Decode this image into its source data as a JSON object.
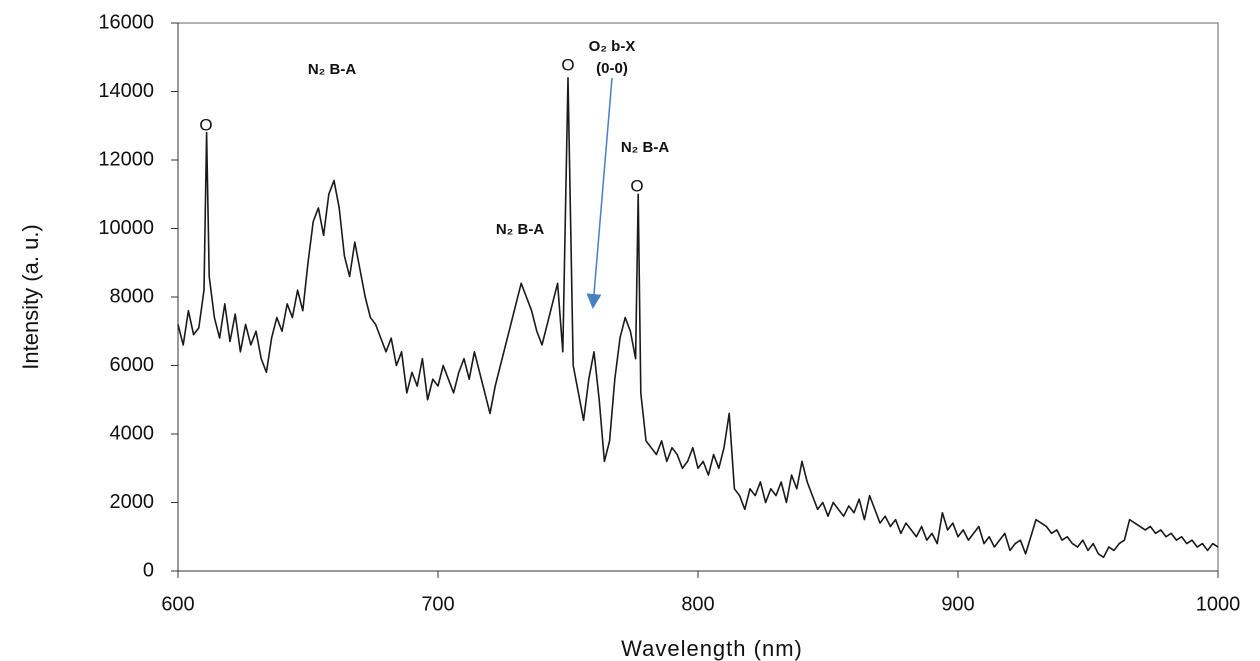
{
  "chart_data": {
    "type": "line",
    "x_label": "Wavelength (nm)",
    "y_label": "Intensity (a. u.)",
    "annotations": [
      "O",
      "N₂ B-A",
      "O",
      "O₂ b-X",
      "(0-0)",
      "N₂ B-A",
      "O",
      "N₂ B-A"
    ],
    "color": "#1a1a1a",
    "arrow_color": "#4a7fc1",
    "xlim": [
      600,
      1000
    ],
    "xticks": [
      600,
      700,
      800,
      900,
      1000
    ],
    "ylim": [
      0,
      16000
    ],
    "yticks": [
      0,
      2000,
      4000,
      6000,
      8000,
      10000,
      12000,
      14000,
      16000
    ],
    "x": [
      600,
      602,
      604,
      606,
      608,
      610,
      611,
      612,
      614,
      616,
      618,
      620,
      622,
      624,
      626,
      628,
      630,
      632,
      634,
      636,
      638,
      640,
      642,
      644,
      646,
      648,
      650,
      652,
      654,
      656,
      658,
      660,
      662,
      664,
      666,
      668,
      670,
      672,
      674,
      676,
      678,
      680,
      682,
      684,
      686,
      688,
      690,
      692,
      694,
      696,
      698,
      700,
      702,
      704,
      706,
      708,
      710,
      712,
      714,
      716,
      718,
      720,
      722,
      724,
      726,
      728,
      730,
      732,
      734,
      736,
      738,
      740,
      742,
      744,
      746,
      748,
      750,
      752,
      754,
      756,
      758,
      760,
      762,
      764,
      766,
      768,
      770,
      772,
      774,
      776,
      777,
      778,
      780,
      782,
      784,
      786,
      788,
      790,
      792,
      794,
      796,
      798,
      800,
      802,
      804,
      806,
      808,
      810,
      812,
      814,
      816,
      818,
      820,
      822,
      824,
      826,
      828,
      830,
      832,
      834,
      836,
      838,
      840,
      842,
      844,
      846,
      848,
      850,
      852,
      854,
      856,
      858,
      860,
      862,
      864,
      866,
      868,
      870,
      872,
      874,
      876,
      878,
      880,
      882,
      884,
      886,
      888,
      890,
      892,
      894,
      896,
      898,
      900,
      902,
      904,
      906,
      908,
      910,
      912,
      914,
      916,
      918,
      920,
      922,
      924,
      926,
      928,
      930,
      932,
      934,
      936,
      938,
      940,
      942,
      944,
      946,
      948,
      950,
      952,
      954,
      956,
      958,
      960,
      962,
      964,
      966,
      968,
      970,
      972,
      974,
      976,
      978,
      980,
      982,
      984,
      986,
      988,
      990,
      992,
      994,
      996,
      998,
      1000
    ],
    "values": [
      7200,
      6600,
      7600,
      6900,
      7100,
      8200,
      12800,
      8600,
      7400,
      6800,
      7800,
      6700,
      7500,
      6400,
      7200,
      6600,
      7000,
      6200,
      5800,
      6800,
      7400,
      7000,
      7800,
      7400,
      8200,
      7600,
      9000,
      10200,
      10600,
      9800,
      11000,
      11400,
      10600,
      9200,
      8600,
      9600,
      8800,
      8000,
      7400,
      7200,
      6800,
      6400,
      6800,
      6000,
      6400,
      5200,
      5800,
      5400,
      6200,
      5000,
      5600,
      5400,
      6000,
      5600,
      5200,
      5800,
      6200,
      5600,
      6400,
      5800,
      5200,
      4600,
      5400,
      6000,
      6600,
      7200,
      7800,
      8400,
      8000,
      7600,
      7000,
      6600,
      7200,
      7800,
      8400,
      6400,
      14400,
      6000,
      5200,
      4400,
      5600,
      6400,
      5000,
      3200,
      3800,
      5600,
      6800,
      7400,
      7000,
      6200,
      11000,
      5200,
      3800,
      3600,
      3400,
      3800,
      3200,
      3600,
      3400,
      3000,
      3200,
      3600,
      3000,
      3200,
      2800,
      3400,
      3000,
      3600,
      4600,
      2400,
      2200,
      1800,
      2400,
      2200,
      2600,
      2000,
      2400,
      2200,
      2600,
      2000,
      2800,
      2400,
      3200,
      2600,
      2200,
      1800,
      2000,
      1600,
      2000,
      1800,
      1600,
      1900,
      1700,
      2100,
      1500,
      2200,
      1800,
      1400,
      1600,
      1300,
      1500,
      1100,
      1400,
      1200,
      1000,
      1300,
      900,
      1100,
      800,
      1700,
      1200,
      1400,
      1000,
      1200,
      900,
      1100,
      1300,
      800,
      1000,
      700,
      900,
      1100,
      600,
      800,
      900,
      500,
      1000,
      1500,
      1400,
      1300,
      1100,
      1200,
      900,
      1000,
      800,
      700,
      900,
      600,
      800,
      500,
      400,
      700,
      600,
      800,
      900,
      1500,
      1400,
      1300,
      1200,
      1300,
      1100,
      1200,
      1000,
      1100,
      900,
      1000,
      800,
      900,
      700,
      800,
      600,
      800,
      700
    ]
  }
}
